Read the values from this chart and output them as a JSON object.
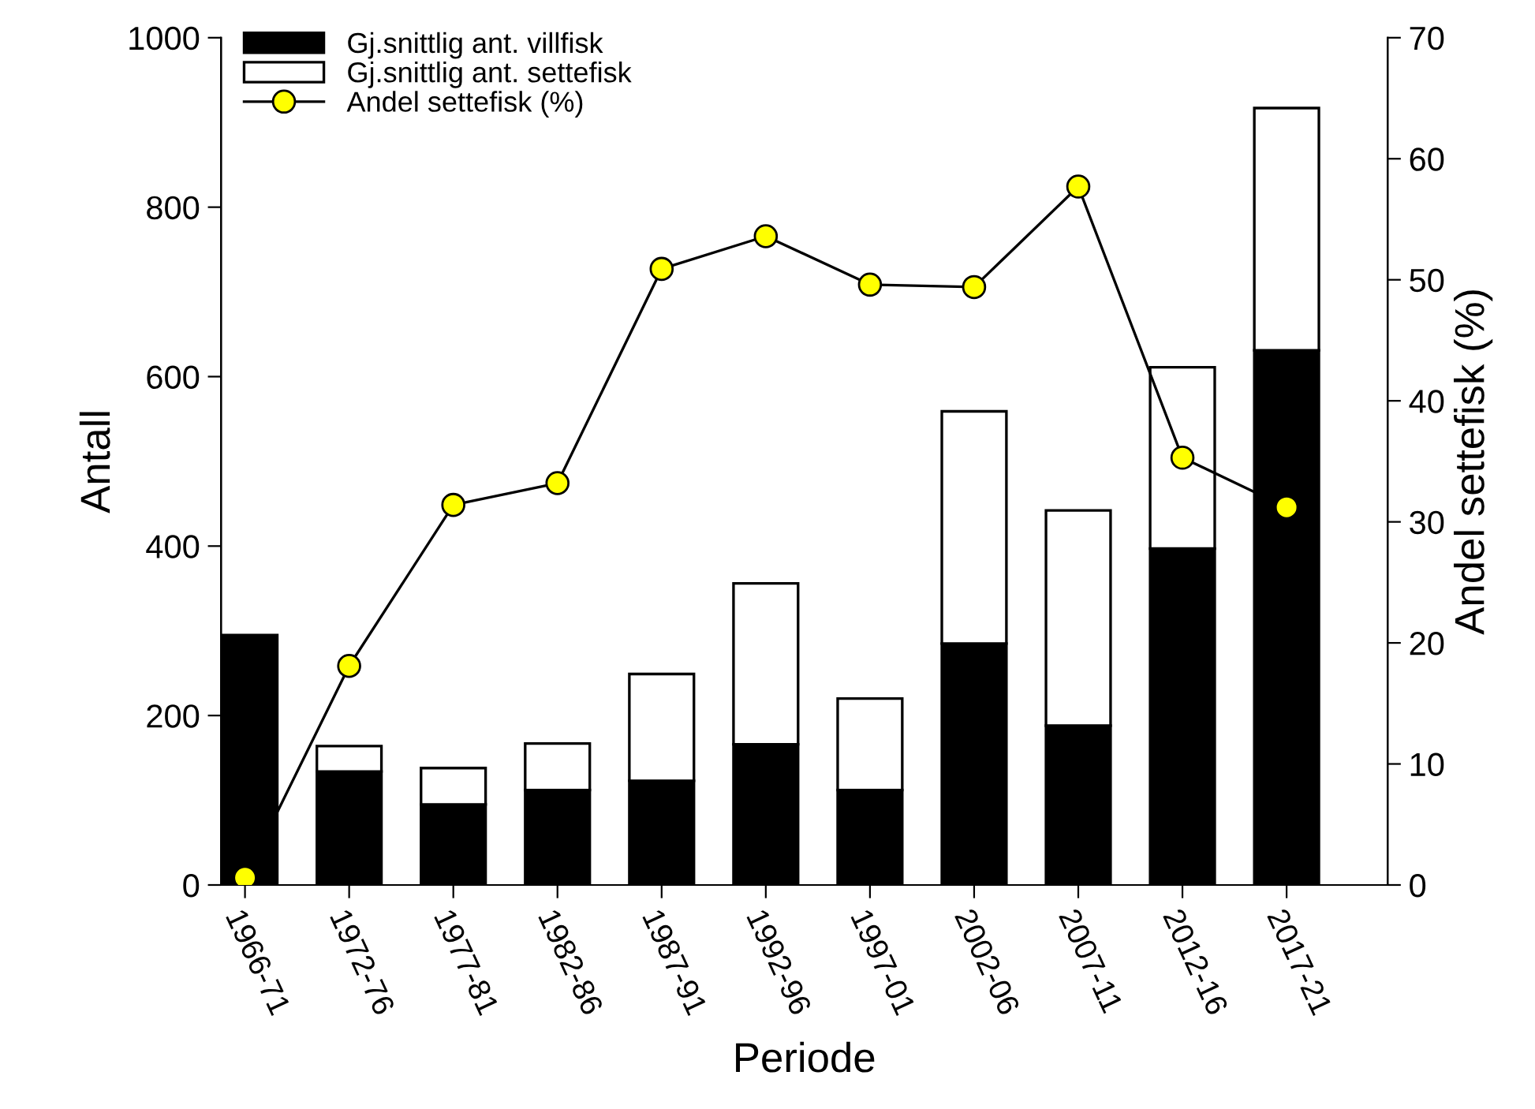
{
  "chart_data": {
    "type": "bar",
    "stacked": true,
    "xlabel": "Periode",
    "ylabel": "Antall",
    "y2label": "Andel settefisk (%)",
    "categories": [
      "1966-71",
      "1972-76",
      "1977-81",
      "1982-86",
      "1987-91",
      "1992-96",
      "1997-01",
      "2002-06",
      "2007-11",
      "2012-16",
      "2017-21"
    ],
    "series": [
      {
        "name": "Gj.snittlig ant. villfisk",
        "color": "#000000",
        "values": [
          295,
          134,
          95,
          112,
          123,
          166,
          112,
          285,
          188,
          397,
          631
        ]
      },
      {
        "name": "Gj.snittlig ant. settefisk",
        "color": "#ffffff",
        "values": [
          null,
          30,
          43,
          55,
          126,
          190,
          108,
          274,
          254,
          214,
          286
        ]
      },
      {
        "name": "Andel settefisk (%)",
        "type": "line",
        "axis": "y2",
        "color": "#ffff00",
        "marker": "circle",
        "values": [
          0.6,
          18.1,
          31.4,
          33.2,
          50.9,
          53.6,
          49.6,
          49.4,
          57.7,
          35.3,
          31.2
        ]
      }
    ],
    "ylim": [
      0,
      1000
    ],
    "yticks": [
      0,
      200,
      400,
      600,
      800,
      1000
    ],
    "y2lim": [
      0,
      70
    ],
    "y2ticks": [
      0,
      10,
      20,
      30,
      40,
      50,
      60,
      70
    ],
    "legend": "top left",
    "grid": false
  }
}
